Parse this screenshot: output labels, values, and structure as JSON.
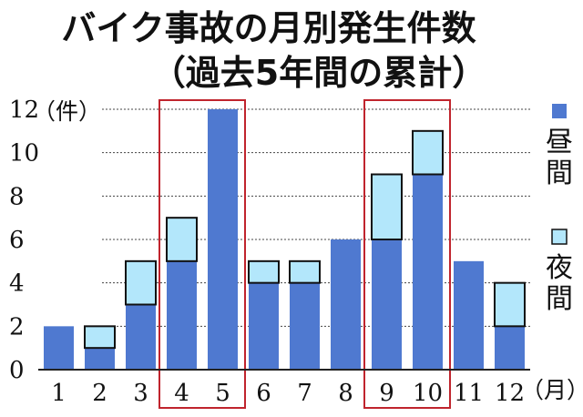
{
  "chart_data": {
    "type": "bar",
    "stacked": true,
    "title_line1": "バイク事故の月別発生件数",
    "title_line2": "（過去5年間の累計）",
    "ylabel": "（件）",
    "xlabel": "（月）",
    "categories": [
      "1",
      "2",
      "3",
      "4",
      "5",
      "6",
      "7",
      "8",
      "9",
      "10",
      "11",
      "12"
    ],
    "ylim": [
      0,
      12
    ],
    "yticks": [
      "0",
      "2",
      "4",
      "6",
      "8",
      "10",
      "12"
    ],
    "grid": true,
    "series": [
      {
        "name": "昼間",
        "color": "#4f79d0",
        "values": [
          2,
          1,
          3,
          5,
          12,
          4,
          4,
          6,
          6,
          9,
          5,
          2
        ]
      },
      {
        "name": "夜間",
        "color": "#b3e7fb",
        "values": [
          0,
          1,
          2,
          2,
          0,
          1,
          1,
          0,
          3,
          2,
          0,
          2
        ]
      }
    ],
    "highlight_groups": [
      [
        "4",
        "5"
      ],
      [
        "9",
        "10"
      ]
    ],
    "highlight_color": "#c0242d",
    "legend_position": "right"
  }
}
